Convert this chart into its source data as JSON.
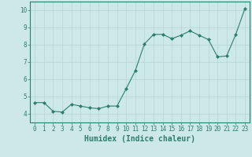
{
  "x": [
    0,
    1,
    2,
    3,
    4,
    5,
    6,
    7,
    8,
    9,
    10,
    11,
    12,
    13,
    14,
    15,
    16,
    17,
    18,
    19,
    20,
    21,
    22,
    23
  ],
  "y": [
    4.65,
    4.65,
    4.15,
    4.1,
    4.55,
    4.45,
    4.35,
    4.3,
    4.45,
    4.45,
    5.45,
    6.5,
    8.05,
    8.6,
    8.6,
    8.35,
    8.55,
    8.8,
    8.55,
    8.3,
    7.3,
    7.35,
    8.6,
    10.1
  ],
  "xlabel": "Humidex (Indice chaleur)",
  "ylim": [
    3.5,
    10.5
  ],
  "xlim": [
    -0.5,
    23.5
  ],
  "yticks": [
    4,
    5,
    6,
    7,
    8,
    9,
    10
  ],
  "xticks": [
    0,
    1,
    2,
    3,
    4,
    5,
    6,
    7,
    8,
    9,
    10,
    11,
    12,
    13,
    14,
    15,
    16,
    17,
    18,
    19,
    20,
    21,
    22,
    23
  ],
  "line_color": "#2e7d6e",
  "marker": "D",
  "marker_size": 2.0,
  "bg_color": "#cce8e8",
  "grid_color": "#b8d8d8",
  "axis_color": "#2e7d6e",
  "label_color": "#2e7d6e",
  "tick_label_fontsize": 5.5,
  "xlabel_fontsize": 7.0
}
